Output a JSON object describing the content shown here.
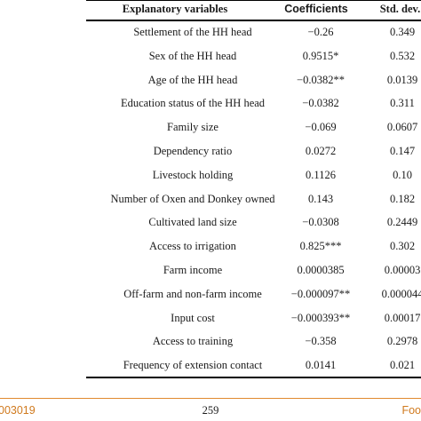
{
  "table": {
    "headers": {
      "variable": "Explanatory variables",
      "coefficient": "Coefficients",
      "std_dev": "Std. dev."
    },
    "rows": [
      {
        "variable": "Settlement of the HH head",
        "coefficient": "−0.26",
        "std_dev": "0.349"
      },
      {
        "variable": "Sex of the HH head",
        "coefficient": "0.9515*",
        "std_dev": "0.532"
      },
      {
        "variable": "Age of the HH head",
        "coefficient": "−0.0382**",
        "std_dev": "0.0139"
      },
      {
        "variable": "Education status of the HH head",
        "coefficient": "−0.0382",
        "std_dev": "0.311"
      },
      {
        "variable": "Family size",
        "coefficient": "−0.069",
        "std_dev": "0.0607"
      },
      {
        "variable": "Dependency ratio",
        "coefficient": "0.0272",
        "std_dev": "0.147"
      },
      {
        "variable": "Livestock holding",
        "coefficient": "0.1126",
        "std_dev": "0.10"
      },
      {
        "variable": "Number of Oxen and Donkey owned",
        "coefficient": "0.143",
        "std_dev": "0.182"
      },
      {
        "variable": "Cultivated land size",
        "coefficient": "−0.0308",
        "std_dev": "0.2449"
      },
      {
        "variable": "Access to irrigation",
        "coefficient": "0.825***",
        "std_dev": "0.302"
      },
      {
        "variable": "Farm income",
        "coefficient": "0.0000385",
        "std_dev": "0.00003"
      },
      {
        "variable": "Off-farm and non-farm income",
        "coefficient": "−0.000097**",
        "std_dev": "0.000044"
      },
      {
        "variable": "Input cost",
        "coefficient": "−0.000393**",
        "std_dev": "0.00017"
      },
      {
        "variable": "Access to training",
        "coefficient": "−0.358",
        "std_dev": "0.2978"
      },
      {
        "variable": "Frequency of extension contact",
        "coefficient": "0.0141",
        "std_dev": "0.021"
      }
    ]
  },
  "footer": {
    "doi_fragment": "003019",
    "page_number": "259",
    "journal_fragment": "Foo"
  },
  "colors": {
    "accent": "#d07a1e",
    "text": "#1a1a1a"
  }
}
